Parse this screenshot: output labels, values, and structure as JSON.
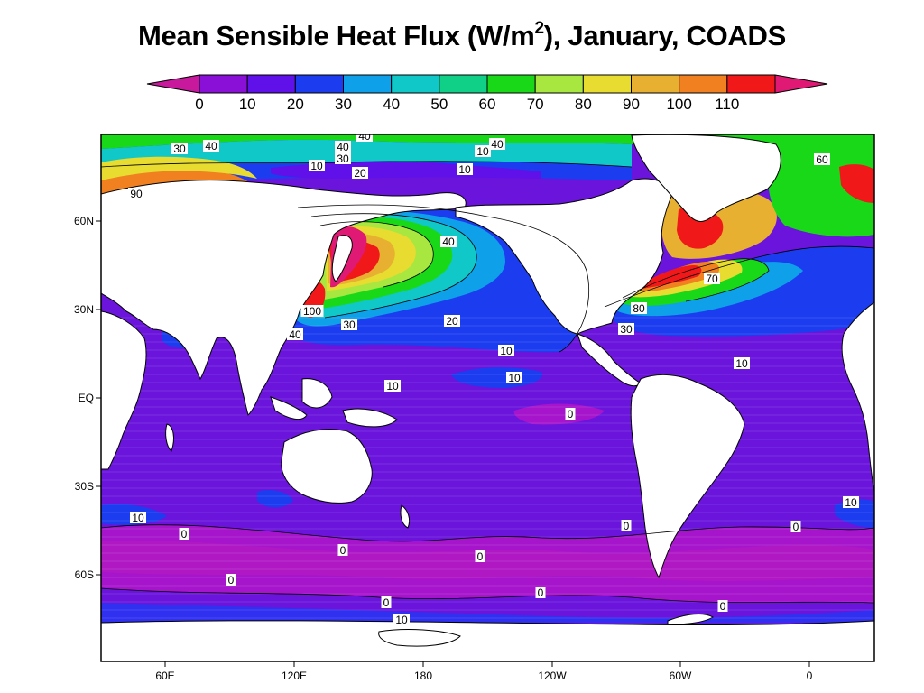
{
  "title": {
    "main": "Mean Sensible Heat Flux (W/m",
    "superscript": "2",
    "suffix": "), January, COADS"
  },
  "colorbar": {
    "ticks": [
      "0",
      "10",
      "20",
      "30",
      "40",
      "50",
      "60",
      "70",
      "80",
      "90",
      "100",
      "110"
    ],
    "under_color": "#c8189c",
    "over_color": "#e01a74",
    "colors": [
      "#8a10d8",
      "#6010e8",
      "#1c3cf0",
      "#0ea0e8",
      "#10c8c8",
      "#10d088",
      "#18d818",
      "#a8e640",
      "#e8dc30",
      "#e8b030",
      "#f08020",
      "#f01818"
    ]
  },
  "map": {
    "ocean_base_color": "#6a14dc",
    "land_color": "#ffffff",
    "lat_labels": [
      "60N",
      "30N",
      "EQ",
      "30S",
      "60S"
    ],
    "lon_labels": [
      "60E",
      "120E",
      "180",
      "120W",
      "60W",
      "0"
    ]
  },
  "contour_labels": [
    {
      "text": "30"
    },
    {
      "text": "40"
    },
    {
      "text": "90"
    },
    {
      "text": "40"
    },
    {
      "text": "40"
    },
    {
      "text": "30"
    },
    {
      "text": "10"
    },
    {
      "text": "20"
    },
    {
      "text": "40"
    },
    {
      "text": "10"
    },
    {
      "text": "10"
    },
    {
      "text": "60"
    },
    {
      "text": "40"
    },
    {
      "text": "100"
    },
    {
      "text": "30"
    },
    {
      "text": "40"
    },
    {
      "text": "20"
    },
    {
      "text": "10"
    },
    {
      "text": "10"
    },
    {
      "text": "10"
    },
    {
      "text": "70"
    },
    {
      "text": "80"
    },
    {
      "text": "30"
    },
    {
      "text": "10"
    },
    {
      "text": "0"
    },
    {
      "text": "10"
    },
    {
      "text": "10"
    },
    {
      "text": "0"
    },
    {
      "text": "0"
    },
    {
      "text": "0"
    },
    {
      "text": "0"
    },
    {
      "text": "0"
    },
    {
      "text": "0"
    },
    {
      "text": "0"
    },
    {
      "text": "0"
    },
    {
      "text": "10"
    },
    {
      "text": "0"
    }
  ]
}
